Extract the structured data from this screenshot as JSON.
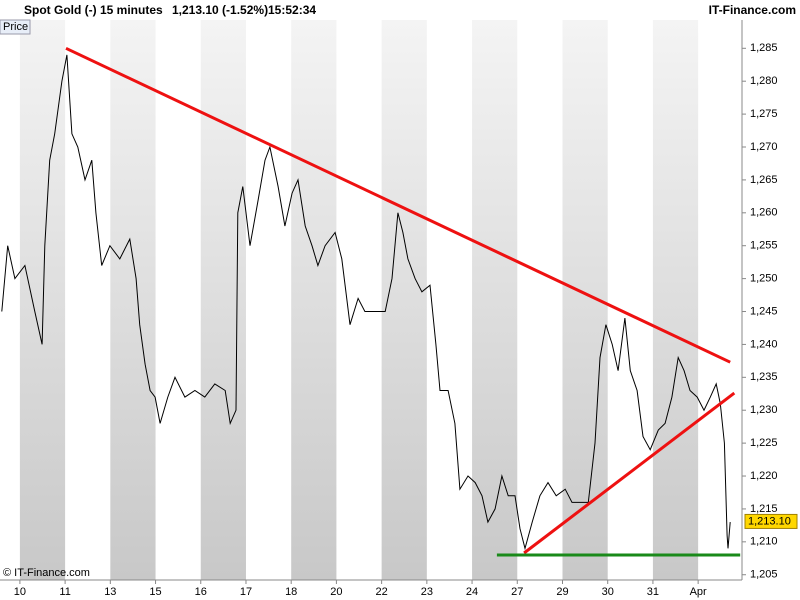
{
  "header": {
    "symbol": "Spot Gold (-)",
    "interval": "15 minutes",
    "quote": "1,213.10 (-1.52%)",
    "time": "15:52:34",
    "brand": "IT-Finance.com"
  },
  "chart_data": {
    "type": "line",
    "panel_label": "Price",
    "copyright": "© IT-Finance.com",
    "xlim": [
      -0.44,
      15.97
    ],
    "ylim": [
      1204.2,
      1289.3
    ],
    "xticks": [
      {
        "value": 0,
        "label": "10"
      },
      {
        "value": 1,
        "label": "11"
      },
      {
        "value": 2,
        "label": "13"
      },
      {
        "value": 3,
        "label": "15"
      },
      {
        "value": 4,
        "label": "16"
      },
      {
        "value": 5,
        "label": "17"
      },
      {
        "value": 6,
        "label": "18"
      },
      {
        "value": 7,
        "label": "20"
      },
      {
        "value": 8,
        "label": "22"
      },
      {
        "value": 9,
        "label": "23"
      },
      {
        "value": 10,
        "label": "24"
      },
      {
        "value": 11,
        "label": "27"
      },
      {
        "value": 12,
        "label": "29"
      },
      {
        "value": 13,
        "label": "30"
      },
      {
        "value": 14,
        "label": "31"
      },
      {
        "value": 15,
        "label": "Apr"
      }
    ],
    "yticks": [
      {
        "value": 1205,
        "label": "1,205"
      },
      {
        "value": 1210,
        "label": "1,210"
      },
      {
        "value": 1215,
        "label": "1,215"
      },
      {
        "value": 1220,
        "label": "1,220"
      },
      {
        "value": 1225,
        "label": "1,225"
      },
      {
        "value": 1230,
        "label": "1,230"
      },
      {
        "value": 1235,
        "label": "1,235"
      },
      {
        "value": 1240,
        "label": "1,240"
      },
      {
        "value": 1245,
        "label": "1,245"
      },
      {
        "value": 1250,
        "label": "1,250"
      },
      {
        "value": 1255,
        "label": "1,255"
      },
      {
        "value": 1260,
        "label": "1,260"
      },
      {
        "value": 1265,
        "label": "1,265"
      },
      {
        "value": 1270,
        "label": "1,270"
      },
      {
        "value": 1275,
        "label": "1,275"
      },
      {
        "value": 1280,
        "label": "1,280"
      },
      {
        "value": 1285,
        "label": "1,285"
      }
    ],
    "last_price": {
      "value": 1213.1,
      "label": "1,213.10"
    },
    "series": [
      {
        "color": "#000000",
        "x": [
          -0.4,
          -0.27,
          -0.11,
          0.11,
          0.33,
          0.49,
          0.55,
          0.66,
          0.77,
          0.93,
          1.04,
          1.15,
          1.28,
          1.44,
          1.59,
          1.68,
          1.81,
          1.99,
          2.21,
          2.43,
          2.57,
          2.65,
          2.77,
          2.88,
          2.99,
          3.1,
          3.27,
          3.43,
          3.65,
          3.87,
          4.09,
          4.31,
          4.54,
          4.65,
          4.78,
          4.82,
          4.93,
          5.09,
          5.27,
          5.42,
          5.53,
          5.71,
          5.86,
          6.02,
          6.15,
          6.31,
          6.46,
          6.59,
          6.75,
          6.97,
          7.12,
          7.3,
          7.48,
          7.63,
          7.85,
          8.08,
          8.23,
          8.36,
          8.47,
          8.58,
          8.74,
          8.89,
          9.07,
          9.2,
          9.29,
          9.47,
          9.62,
          9.73,
          9.91,
          10.07,
          10.22,
          10.35,
          10.51,
          10.66,
          10.8,
          10.95,
          11.06,
          11.17,
          11.33,
          11.5,
          11.68,
          11.86,
          12.06,
          12.21,
          12.39,
          12.57,
          12.72,
          12.83,
          12.96,
          13.1,
          13.23,
          13.38,
          13.5,
          13.65,
          13.78,
          13.94,
          14.12,
          14.27,
          14.42,
          14.56,
          14.69,
          14.82,
          14.98,
          15.13,
          15.27,
          15.4,
          15.49,
          15.58,
          15.64,
          15.66,
          15.71
        ],
        "values": [
          1245,
          1255,
          1250,
          1252,
          1245,
          1240,
          1255,
          1268,
          1272,
          1280,
          1284,
          1272,
          1270,
          1265,
          1268,
          1260,
          1252,
          1255,
          1253,
          1256,
          1250,
          1243,
          1237,
          1233,
          1232,
          1228,
          1232,
          1235,
          1232,
          1233,
          1232,
          1234,
          1233,
          1228,
          1230,
          1260,
          1264,
          1255,
          1262,
          1268,
          1270,
          1264,
          1258,
          1263,
          1265,
          1258,
          1255,
          1252,
          1255,
          1257,
          1253,
          1243,
          1247,
          1245,
          1245,
          1245,
          1250,
          1260,
          1257,
          1253,
          1250,
          1248,
          1249,
          1240,
          1233,
          1233,
          1228,
          1218,
          1220,
          1219,
          1217,
          1213,
          1215,
          1220,
          1217,
          1217,
          1212,
          1209,
          1213,
          1217,
          1219,
          1217,
          1218,
          1216,
          1216,
          1216,
          1225,
          1238,
          1243,
          1240,
          1236,
          1244,
          1236,
          1233,
          1226,
          1224,
          1227,
          1228,
          1232,
          1238,
          1236,
          1233,
          1232,
          1230,
          1232,
          1234,
          1231,
          1225,
          1211,
          1209,
          1213
        ]
      }
    ],
    "trendlines": [
      {
        "color": "#ee1111",
        "x": [
          1.02,
          15.71
        ],
        "values": [
          1285,
          1237.3
        ]
      },
      {
        "color": "#ee1111",
        "x": [
          11.15,
          15.8
        ],
        "values": [
          1208.3,
          1232.6
        ]
      },
      {
        "color": "#1a8a1a",
        "x": [
          10.55,
          15.93
        ],
        "values": [
          1208,
          1208
        ]
      }
    ]
  }
}
